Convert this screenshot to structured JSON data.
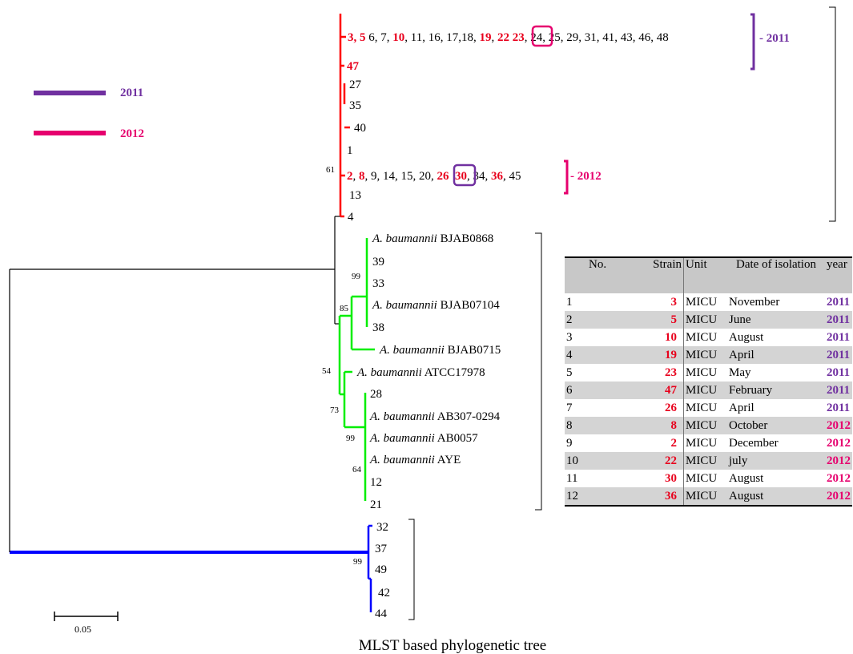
{
  "colors": {
    "group_2011": "#7030a0",
    "group_2012": "#e6006e",
    "highlight_red": "#e8001c",
    "clade_red": "#ff0000",
    "clade_green": "#00ee00",
    "clade_blue": "#0000ff"
  },
  "legend": {
    "label_2011": "2011",
    "label_2012": "2012"
  },
  "tree": {
    "top_group": {
      "strains": [
        "3, 5",
        "6, 7,",
        "10",
        "11, 16, 17,18,",
        "19",
        "22",
        "23",
        "24, 25, 29, 31, 41, 43, 46, 48"
      ],
      "year": "2011"
    },
    "leaf_47": "47",
    "leaf_27": "27",
    "leaf_35": "35",
    "leaf_40": "40",
    "leaf_1": "1",
    "mid_group": {
      "strains": [
        "2",
        "8",
        "9, 14, 15, 20,",
        "26",
        "30",
        "34,",
        "36",
        "45"
      ],
      "year": "2012"
    },
    "leaf_13": "13",
    "leaf_4": "4",
    "species": "A. baumannii",
    "refs": {
      "bjab0868": "BJAB0868",
      "bjab07104": "BJAB07104",
      "bjab0715": "BJAB0715",
      "atcc17978": "ATCC17978",
      "ab307": "AB307-0294",
      "ab0057": "AB0057",
      "aye": "AYE"
    },
    "green_leaves": {
      "l39": "39",
      "l33": "33",
      "l38": "38",
      "l28": "28",
      "l12": "12",
      "l21": "21"
    },
    "blue_leaves": {
      "l32": "32",
      "l37": "37",
      "l49": "49",
      "l42": "42",
      "l44": "44"
    },
    "bootstrap": {
      "b61": "61",
      "b99a": "99",
      "b85": "85",
      "b54": "54",
      "b73": "73",
      "b99b": "99",
      "b64": "64",
      "b99c": "99"
    },
    "scale_label": "0.05",
    "caption": "MLST based phylogenetic tree"
  },
  "table": {
    "headers": {
      "no": "No.",
      "strain": "Strain",
      "unit": "Unit",
      "date": "Date of isolation",
      "year": "year"
    },
    "rows": [
      {
        "no": "1",
        "strain": "3",
        "unit": "MICU",
        "date": "November",
        "year": "2011"
      },
      {
        "no": "2",
        "strain": "5",
        "unit": "MICU",
        "date": "June",
        "year": "2011"
      },
      {
        "no": "3",
        "strain": "10",
        "unit": "MICU",
        "date": "August",
        "year": "2011"
      },
      {
        "no": "4",
        "strain": "19",
        "unit": "MICU",
        "date": "April",
        "year": "2011"
      },
      {
        "no": "5",
        "strain": "23",
        "unit": "MICU",
        "date": "May",
        "year": "2011"
      },
      {
        "no": "6",
        "strain": "47",
        "unit": "MICU",
        "date": "February",
        "year": "2011"
      },
      {
        "no": "7",
        "strain": "26",
        "unit": "MICU",
        "date": "April",
        "year": "2011"
      },
      {
        "no": "8",
        "strain": "8",
        "unit": "MICU",
        "date": "October",
        "year": "2012"
      },
      {
        "no": "9",
        "strain": "2",
        "unit": "MICU",
        "date": "December",
        "year": "2012"
      },
      {
        "no": "10",
        "strain": "22",
        "unit": "MICU",
        "date": "july",
        "year": "2012"
      },
      {
        "no": "11",
        "strain": "30",
        "unit": "MICU",
        "date": "August",
        "year": "2012"
      },
      {
        "no": "12",
        "strain": "36",
        "unit": "MICU",
        "date": "August",
        "year": "2012"
      }
    ]
  }
}
